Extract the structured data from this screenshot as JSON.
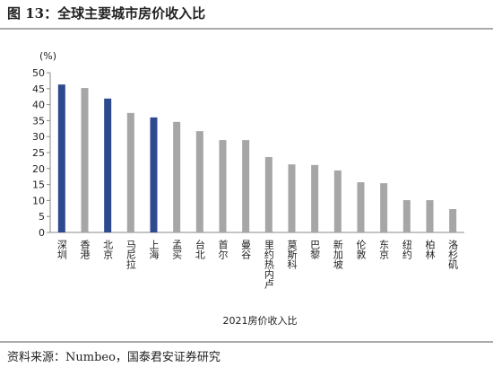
{
  "chart_data": {
    "type": "bar",
    "title": "图 13：全球主要城市房价收入比",
    "unit_label": "(%)",
    "xlabel": "2021房价收入比",
    "source": "资料来源：Numbeo，国泰君安证券研究",
    "categories": [
      "深圳",
      "香港",
      "北京",
      "马尼拉",
      "上海",
      "孟买",
      "台北",
      "首尔",
      "曼谷",
      "里约热内卢",
      "莫斯科",
      "巴黎",
      "新加坡",
      "伦敦",
      "东京",
      "纽约",
      "柏林",
      "洛杉矶"
    ],
    "values": [
      46.3,
      45.2,
      41.9,
      37.4,
      36.0,
      34.6,
      31.7,
      28.9,
      28.9,
      23.6,
      21.3,
      21.1,
      19.4,
      15.7,
      15.4,
      10.1,
      10.1,
      7.3
    ],
    "colors": [
      "#2e4a8e",
      "#a6a6a6",
      "#2e4a8e",
      "#a6a6a6",
      "#2e4a8e",
      "#a6a6a6",
      "#a6a6a6",
      "#a6a6a6",
      "#a6a6a6",
      "#a6a6a6",
      "#a6a6a6",
      "#a6a6a6",
      "#a6a6a6",
      "#a6a6a6",
      "#a6a6a6",
      "#a6a6a6",
      "#a6a6a6",
      "#a6a6a6"
    ],
    "ylim": [
      0,
      50
    ],
    "yticks": [
      0,
      5,
      10,
      15,
      20,
      25,
      30,
      35,
      40,
      45,
      50
    ],
    "grid": false
  }
}
